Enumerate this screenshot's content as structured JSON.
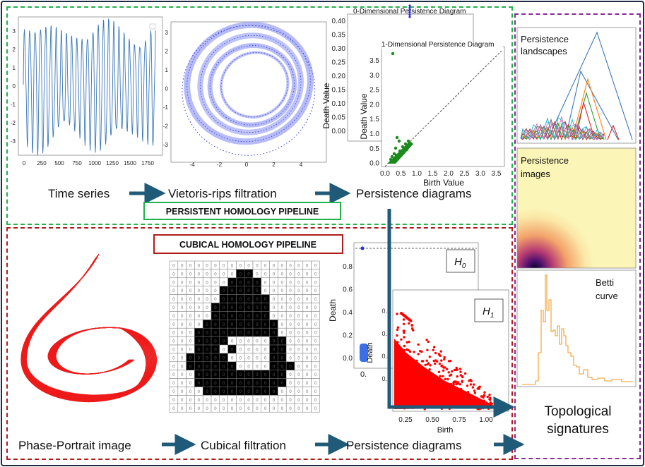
{
  "colors": {
    "frame": "#1f2d44",
    "ph_border": "#22b14c",
    "ch_border": "#b01c1c",
    "sig_border": "#8a2a9b",
    "arrow": "#1f5a78",
    "line_series": "#3b78b8",
    "rips": "#3a46e6",
    "pd0": "#2a2ae0",
    "pd1": "#1c8a1c",
    "cubical_pd": "#ff0000"
  },
  "pipelines": {
    "persistent": {
      "title": "PERSISTENT HOMOLOGY PIPELINE",
      "steps": [
        "Time series",
        "Vietoris-rips filtration",
        "Persistence diagrams"
      ]
    },
    "cubical": {
      "title": "CUBICAL HOMOLOGY PIPELINE",
      "steps": [
        "Phase-Portrait image",
        "Cubical filtration",
        "Persistence diagrams"
      ]
    }
  },
  "output_label": [
    "Topological",
    "signatures"
  ],
  "timeseries_plot": {
    "yticks": [
      "3",
      "2",
      "1",
      "0",
      "-1",
      "-2",
      "-3"
    ],
    "xticks": [
      "0",
      "250",
      "500",
      "750",
      "1000",
      "1250",
      "1500",
      "1750"
    ]
  },
  "rips_plot": {
    "yticks": [
      "3",
      "2",
      "1",
      "0",
      "-1",
      "-2",
      "-3"
    ],
    "xticks": [
      "-4",
      "-2",
      "0",
      "2",
      "4"
    ]
  },
  "pd_panel": {
    "title0": "0-Dimensional Persistence Diagram",
    "title1": "1-Dimensional Persistence Diagram",
    "y0ticks": [
      "0.40",
      "0.35",
      "0.30",
      "0.25",
      "0.20",
      "0.15",
      "0.10",
      "0.05",
      "0.00"
    ],
    "ylabel_back": "Death Value",
    "ylabel_front": "Death Value",
    "yticks": [
      "3.5",
      "3.0",
      "2.5",
      "2.0",
      "1.5",
      "1.0",
      "0.5",
      "0.0"
    ],
    "xticks": [
      "0.0",
      "0.5",
      "1.0",
      "1.5",
      "2.0",
      "2.5",
      "3.0",
      "3.5"
    ],
    "xlabel": "Birth Value"
  },
  "cubical_pd": {
    "h0_label": "H",
    "h0_sub": "0",
    "h1_label": "H",
    "h1_sub": "1",
    "back_yticks": [
      "0.8",
      "0.6",
      "0.4",
      "0.2",
      "0.0"
    ],
    "back_ylabel": "Death",
    "back_xtick": "0.",
    "front_ylabel": "Death",
    "front_yticks": [
      "0.8",
      "0.6",
      "0.4",
      "0.2"
    ],
    "front_xticks": [
      "0.25",
      "0.50",
      "0.75",
      "1.00"
    ],
    "front_xlabel": "Birth"
  },
  "signatures": {
    "landscapes_label": [
      "Persistence",
      "landscapes"
    ],
    "images_label": [
      "Persistence",
      "images"
    ],
    "betti_label": [
      "Betti",
      "curve"
    ]
  },
  "cubical_grid_value": "0"
}
